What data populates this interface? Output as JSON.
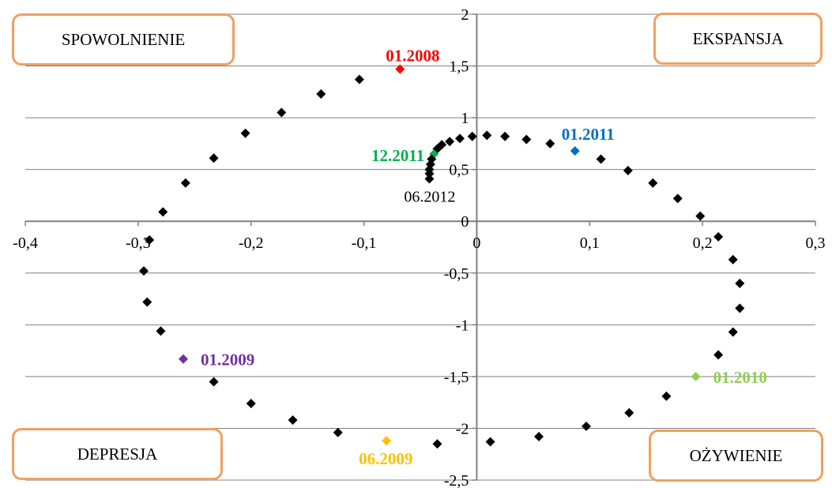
{
  "chart_data": {
    "type": "scatter",
    "title": "",
    "xlabel": "",
    "ylabel": "",
    "xlim": [
      -0.4,
      0.3
    ],
    "ylim": [
      -2.5,
      2
    ],
    "x_ticks": [
      "-0,4",
      "-0,3",
      "-0,2",
      "-0,1",
      "0",
      "0,1",
      "0,2",
      "0,3"
    ],
    "y_ticks": [
      "2",
      "1,5",
      "1",
      "0,5",
      "0",
      "-0,5",
      "-1",
      "-1,5",
      "-2",
      "-2,5"
    ],
    "grid": true,
    "marker": "diamond",
    "default_color": "#000000",
    "points": [
      {
        "x": -0.068,
        "y": 1.47,
        "color": "#ff0000",
        "label": "01.2008"
      },
      {
        "x": -0.104,
        "y": 1.37,
        "color": "#000000"
      },
      {
        "x": -0.138,
        "y": 1.23,
        "color": "#000000"
      },
      {
        "x": -0.173,
        "y": 1.05,
        "color": "#000000"
      },
      {
        "x": -0.205,
        "y": 0.85,
        "color": "#000000"
      },
      {
        "x": -0.233,
        "y": 0.61,
        "color": "#000000"
      },
      {
        "x": -0.258,
        "y": 0.37,
        "color": "#000000"
      },
      {
        "x": -0.278,
        "y": 0.09,
        "color": "#000000"
      },
      {
        "x": -0.29,
        "y": -0.18,
        "color": "#000000"
      },
      {
        "x": -0.295,
        "y": -0.48,
        "color": "#000000"
      },
      {
        "x": -0.292,
        "y": -0.78,
        "color": "#000000"
      },
      {
        "x": -0.28,
        "y": -1.06,
        "color": "#000000"
      },
      {
        "x": -0.26,
        "y": -1.33,
        "color": "#7030a0",
        "label": "01.2009"
      },
      {
        "x": -0.233,
        "y": -1.55,
        "color": "#000000"
      },
      {
        "x": -0.2,
        "y": -1.76,
        "color": "#000000"
      },
      {
        "x": -0.163,
        "y": -1.92,
        "color": "#000000"
      },
      {
        "x": -0.123,
        "y": -2.04,
        "color": "#000000"
      },
      {
        "x": -0.08,
        "y": -2.12,
        "color": "#ffc000",
        "label": "06.2009"
      },
      {
        "x": -0.035,
        "y": -2.15,
        "color": "#000000"
      },
      {
        "x": 0.012,
        "y": -2.13,
        "color": "#000000"
      },
      {
        "x": 0.055,
        "y": -2.08,
        "color": "#000000"
      },
      {
        "x": 0.097,
        "y": -1.98,
        "color": "#000000"
      },
      {
        "x": 0.135,
        "y": -1.85,
        "color": "#000000"
      },
      {
        "x": 0.168,
        "y": -1.69,
        "color": "#000000"
      },
      {
        "x": 0.194,
        "y": -1.5,
        "color": "#92d050",
        "label": "01.2010"
      },
      {
        "x": 0.214,
        "y": -1.29,
        "color": "#000000"
      },
      {
        "x": 0.227,
        "y": -1.07,
        "color": "#000000"
      },
      {
        "x": 0.233,
        "y": -0.84,
        "color": "#000000"
      },
      {
        "x": 0.233,
        "y": -0.6,
        "color": "#000000"
      },
      {
        "x": 0.227,
        "y": -0.37,
        "color": "#000000"
      },
      {
        "x": 0.214,
        "y": -0.15,
        "color": "#000000"
      },
      {
        "x": 0.198,
        "y": 0.05,
        "color": "#000000"
      },
      {
        "x": 0.178,
        "y": 0.22,
        "color": "#000000"
      },
      {
        "x": 0.156,
        "y": 0.37,
        "color": "#000000"
      },
      {
        "x": 0.134,
        "y": 0.49,
        "color": "#000000"
      },
      {
        "x": 0.11,
        "y": 0.6,
        "color": "#000000"
      },
      {
        "x": 0.087,
        "y": 0.68,
        "color": "#0070c0",
        "label": "01.2011"
      },
      {
        "x": 0.065,
        "y": 0.75,
        "color": "#000000"
      },
      {
        "x": 0.044,
        "y": 0.79,
        "color": "#000000"
      },
      {
        "x": 0.025,
        "y": 0.82,
        "color": "#000000"
      },
      {
        "x": 0.009,
        "y": 0.83,
        "color": "#000000"
      },
      {
        "x": -0.004,
        "y": 0.82,
        "color": "#000000"
      },
      {
        "x": -0.015,
        "y": 0.8,
        "color": "#000000"
      },
      {
        "x": -0.024,
        "y": 0.77,
        "color": "#000000"
      },
      {
        "x": -0.031,
        "y": 0.74,
        "color": "#000000"
      },
      {
        "x": -0.035,
        "y": 0.7,
        "color": "#000000"
      },
      {
        "x": -0.038,
        "y": 0.65,
        "color": "#00b050",
        "label": "12.2011"
      },
      {
        "x": -0.04,
        "y": 0.6,
        "color": "#000000"
      },
      {
        "x": -0.041,
        "y": 0.55,
        "color": "#000000"
      },
      {
        "x": -0.042,
        "y": 0.5,
        "color": "#000000"
      },
      {
        "x": -0.042,
        "y": 0.46,
        "color": "#000000"
      },
      {
        "x": -0.042,
        "y": 0.41,
        "color": "#000000",
        "label": "06.2012"
      }
    ],
    "quadrant_labels": {
      "top_left": "SPOWOLNIENIE",
      "top_right": "EKSPANSJA",
      "bottom_left": "DEPRESJA",
      "bottom_right": "OŻYWIENIE"
    },
    "quadrant_box_border_color": "#f0a060"
  }
}
